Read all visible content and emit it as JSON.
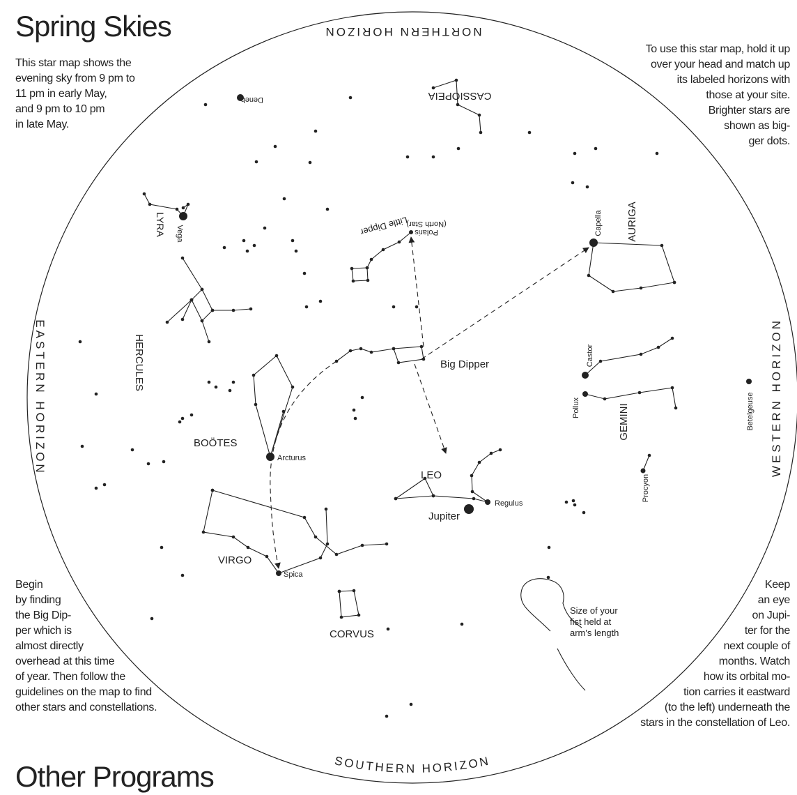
{
  "header": {
    "title": "Spring Skies"
  },
  "intro": [
    "This star map shows the",
    "evening sky from 9 pm to",
    "11 pm in early May,",
    "and 9 pm to 10 pm",
    "in late May."
  ],
  "instructions": [
    "To use this star map, hold it up",
    "over your head and match up",
    "its labeled horizons with",
    "those at your site.",
    "Brighter stars are",
    "shown as big-",
    "ger dots."
  ],
  "begin_note": [
    "Begin",
    "by finding",
    "the Big Dip-",
    "per which is",
    "almost directly",
    "overhead at this time",
    "of year. Then follow the",
    "guidelines on the map to find",
    "other stars and constellations."
  ],
  "jupiter_note": [
    "Keep",
    "an eye",
    "on Jupi-",
    "ter for the",
    "next couple of",
    "months. Watch",
    "how its orbital mo-",
    "tion carries it eastward",
    "(to the left) underneath the",
    "stars in the constellation of Leo."
  ],
  "horizons": {
    "north": "NORTHERN HORIZON",
    "south": "SOUTHERN HORIZON",
    "east": "EASTERN HORIZON",
    "west": "WESTERN HORIZON"
  },
  "labels": {
    "deneb": "Deneb",
    "cassiopeia": "CASSIOPEIA",
    "little_dipper": "Little Dipper",
    "polaris": [
      "Polaris",
      "(North Star)"
    ],
    "lyra": "LYRA",
    "vega": "Vega",
    "capella": "Capella",
    "auriga": "AURIGA",
    "hercules": "HERCULES",
    "big_dipper": "Big Dipper",
    "castor": "Castor",
    "pollux": "Pollux",
    "gemini": "GEMINI",
    "betelgeuse": "Betelgeuse",
    "bootes": "BOÖTES",
    "arcturus": "Arcturus",
    "leo": "LEO",
    "regulus": "Regulus",
    "jupiter": "Jupiter",
    "procyon": "Procyon",
    "virgo": "VIRGO",
    "spica": "Spica",
    "corvus": "CORVUS",
    "fist": [
      "Size of your",
      "fist held at",
      "arm's length"
    ]
  },
  "footer": {
    "title": "Other Programs"
  }
}
